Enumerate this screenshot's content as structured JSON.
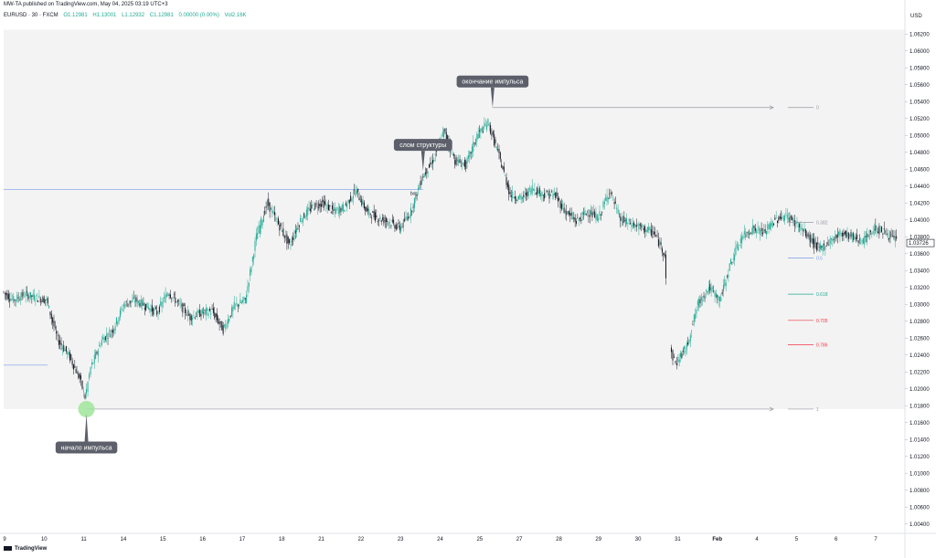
{
  "header": {
    "publisher": "MW-TA published on TradingView.com, May 04, 2025 03:19 UTC+3",
    "symbol": "EURUSD · 30 · FXCM",
    "open": "O1.12981",
    "high": "H1.13001",
    "low": "L1.12932",
    "close": "C1.12981",
    "change": "0.00000 (0.00%)",
    "volume": "Vol2.16K",
    "currency": "USD"
  },
  "footer": {
    "logo_text": "TradingView"
  },
  "colors": {
    "up": "#22ab94",
    "down": "#131722",
    "range_fill": "#f3f3f3",
    "bos_line": "#7a9ce8",
    "fib_line": "#9598a1",
    "fib_05": "#7a9ce8",
    "fib_0618": "#22ab94",
    "fib_0705": "#f23645",
    "fib_0786": "#f23645",
    "annotation_bg": "#5d606b",
    "impulse_start_marker": "#9fe59a"
  },
  "chart_data": {
    "type": "candlestick",
    "symbol": "EURUSD",
    "timeframe": "30",
    "price_axis": {
      "min": 1.003,
      "max": 1.063,
      "ticks": [
        "1.06200",
        "1.06000",
        "1.05800",
        "1.05600",
        "1.05400",
        "1.05200",
        "1.05000",
        "1.04800",
        "1.04600",
        "1.04400",
        "1.04200",
        "1.04000",
        "1.03800",
        "1.03600",
        "1.03400",
        "1.03200",
        "1.03000",
        "1.02800",
        "1.02600",
        "1.02400",
        "1.02200",
        "1.02000",
        "1.01800",
        "1.01600",
        "1.01400",
        "1.01200",
        "1.01000",
        "1.00800",
        "1.00600",
        "1.00400"
      ],
      "current_price": "1.03726"
    },
    "time_axis": {
      "labels": [
        "9",
        "10",
        "11",
        "14",
        "15",
        "16",
        "17",
        "18",
        "21",
        "22",
        "23",
        "24",
        "25",
        "27",
        "28",
        "29",
        "30",
        "31",
        "Feb",
        "4",
        "5",
        "6",
        "7"
      ]
    },
    "path": [
      [
        0,
        1.0315
      ],
      [
        1,
        1.0305
      ],
      [
        2,
        1.0312
      ],
      [
        3,
        1.0308
      ],
      [
        4,
        1.0305
      ],
      [
        5,
        1.0258
      ],
      [
        6,
        1.024
      ],
      [
        7,
        1.0212
      ],
      [
        7.5,
        1.019
      ],
      [
        8,
        1.0225
      ],
      [
        9,
        1.0258
      ],
      [
        10,
        1.027
      ],
      [
        11,
        1.03
      ],
      [
        12,
        1.0305
      ],
      [
        13,
        1.0298
      ],
      [
        14,
        1.029
      ],
      [
        15,
        1.0315
      ],
      [
        16,
        1.03
      ],
      [
        17,
        1.0285
      ],
      [
        18,
        1.029
      ],
      [
        19,
        1.0292
      ],
      [
        20,
        1.027
      ],
      [
        21,
        1.0298
      ],
      [
        22,
        1.0305
      ],
      [
        23,
        1.038
      ],
      [
        24,
        1.042
      ],
      [
        25,
        1.0395
      ],
      [
        26,
        1.037
      ],
      [
        27,
        1.04
      ],
      [
        28,
        1.0415
      ],
      [
        29,
        1.042
      ],
      [
        30,
        1.041
      ],
      [
        31,
        1.0415
      ],
      [
        32,
        1.0435
      ],
      [
        33,
        1.041
      ],
      [
        34,
        1.0402
      ],
      [
        35,
        1.0398
      ],
      [
        36,
        1.039
      ],
      [
        37,
        1.041
      ],
      [
        38,
        1.045
      ],
      [
        39,
        1.047
      ],
      [
        40,
        1.0505
      ],
      [
        41,
        1.047
      ],
      [
        42,
        1.0465
      ],
      [
        43,
        1.05
      ],
      [
        44,
        1.0515
      ],
      [
        45,
        1.0475
      ],
      [
        46,
        1.043
      ],
      [
        47,
        1.0425
      ],
      [
        48,
        1.0438
      ],
      [
        49,
        1.043
      ],
      [
        50,
        1.043
      ],
      [
        51,
        1.041
      ],
      [
        52,
        1.0398
      ],
      [
        53,
        1.041
      ],
      [
        54,
        1.0402
      ],
      [
        55,
        1.0435
      ],
      [
        56,
        1.04
      ],
      [
        57,
        1.0395
      ],
      [
        58,
        1.039
      ],
      [
        59,
        1.0385
      ],
      [
        60,
        1.036
      ],
      [
        60.5,
        1.0245
      ],
      [
        61,
        1.023
      ],
      [
        62,
        1.025
      ],
      [
        63,
        1.03
      ],
      [
        64,
        1.032
      ],
      [
        65,
        1.0305
      ],
      [
        66,
        1.035
      ],
      [
        67,
        1.038
      ],
      [
        68,
        1.039
      ],
      [
        69,
        1.0385
      ],
      [
        70,
        1.04
      ],
      [
        71,
        1.0405
      ],
      [
        72,
        1.0395
      ],
      [
        73,
        1.038
      ],
      [
        74,
        1.0365
      ],
      [
        75,
        1.0375
      ],
      [
        76,
        1.0385
      ],
      [
        77,
        1.038
      ],
      [
        78,
        1.0375
      ],
      [
        79,
        1.039
      ],
      [
        80,
        1.0385
      ],
      [
        81,
        1.0375
      ]
    ],
    "path_x_range": [
      0,
      81
    ],
    "structures": {
      "bos_level": 1.0436,
      "bos_label": "bos",
      "impulse_start": {
        "price": 1.0176,
        "label": "начало импульса"
      },
      "break_of_structure": {
        "price": 1.0458,
        "label": "слом структуры"
      },
      "impulse_end": {
        "price": 1.0533,
        "label": "окончание импульса"
      },
      "lower_level": 1.0228
    },
    "fibonacci": {
      "from_price": 1.0176,
      "to_price": 1.0533,
      "levels": [
        {
          "label": "0",
          "price": 1.0533
        },
        {
          "label": "0.382",
          "price": 1.0397
        },
        {
          "label": "0.5",
          "price": 1.0355
        },
        {
          "label": "0.618",
          "price": 1.0312
        },
        {
          "label": "0.705",
          "price": 1.0281
        },
        {
          "label": "0.786",
          "price": 1.0252
        },
        {
          "label": "1",
          "price": 1.0176
        }
      ]
    }
  }
}
